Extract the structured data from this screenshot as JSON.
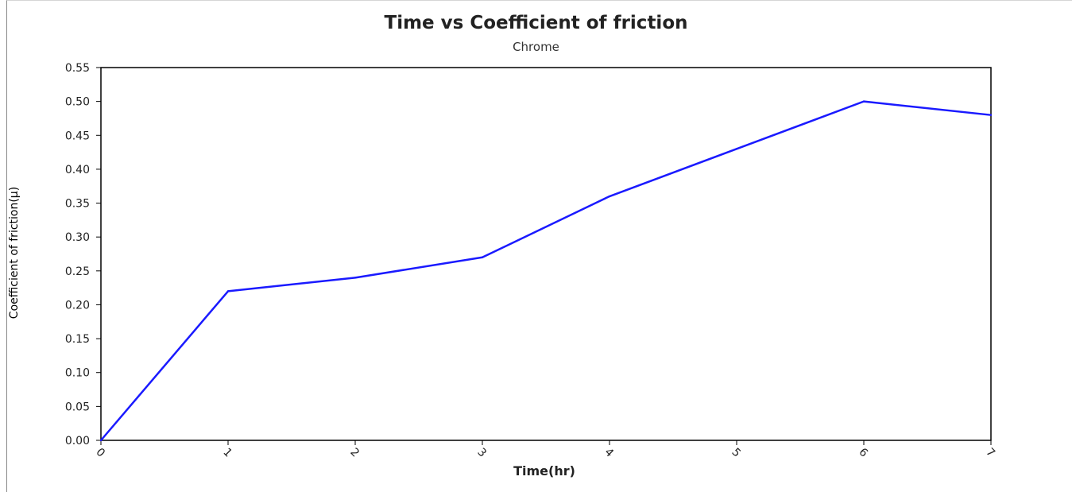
{
  "chart_data": {
    "type": "line",
    "title": "Time vs Coefficient of friction",
    "subtitle": "Chrome",
    "xlabel": "Time(hr)",
    "ylabel": "Coefficient of friction(μ)",
    "x": [
      0,
      1,
      2,
      3,
      4,
      5,
      6,
      7
    ],
    "series": [
      {
        "values": [
          0.0,
          0.22,
          0.24,
          0.27,
          0.36,
          0.43,
          0.5,
          0.48
        ],
        "color": "#1a1aff"
      }
    ],
    "xlim": [
      0,
      7
    ],
    "ylim": [
      0,
      0.55
    ],
    "x_ticks": [
      "0",
      "1",
      "2",
      "3",
      "4",
      "5",
      "6",
      "7"
    ],
    "y_ticks": [
      "0.00",
      "0.05",
      "0.10",
      "0.15",
      "0.20",
      "0.25",
      "0.30",
      "0.35",
      "0.40",
      "0.45",
      "0.50",
      "0.55"
    ],
    "grid": false,
    "legend": "none"
  }
}
